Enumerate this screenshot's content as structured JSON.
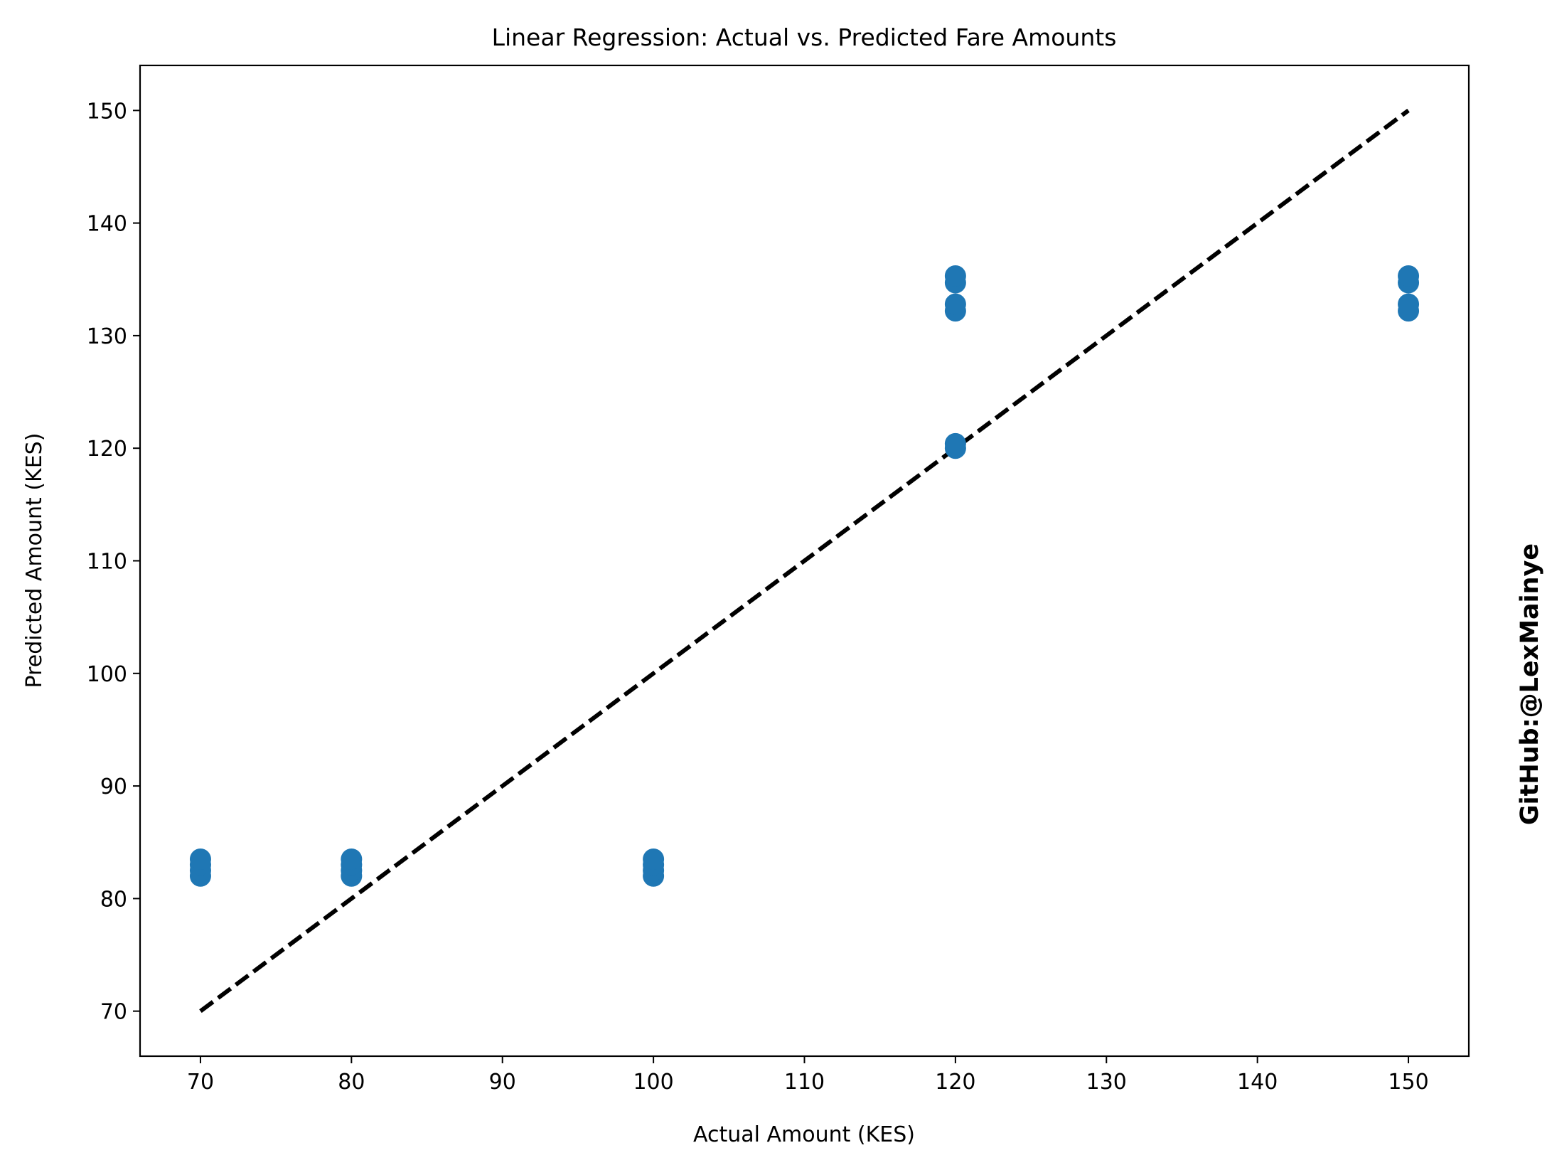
{
  "watermark": {
    "text": "GitHub:@LexMainye",
    "color": "#ff0000"
  },
  "chart_data": {
    "type": "scatter",
    "title": "Linear Regression: Actual vs. Predicted Fare Amounts",
    "xlabel": "Actual Amount (KES)",
    "ylabel": "Predicted Amount (KES)",
    "xlim": [
      66,
      154
    ],
    "ylim": [
      66,
      154
    ],
    "xticks": [
      70,
      80,
      90,
      100,
      110,
      120,
      130,
      140,
      150
    ],
    "yticks": [
      70,
      80,
      90,
      100,
      110,
      120,
      130,
      140,
      150
    ],
    "grid": false,
    "point_color": "#1f77b4",
    "points": [
      {
        "x": 70,
        "y": 82.0
      },
      {
        "x": 70,
        "y": 82.5
      },
      {
        "x": 70,
        "y": 83.0
      },
      {
        "x": 70,
        "y": 83.5
      },
      {
        "x": 80,
        "y": 82.0
      },
      {
        "x": 80,
        "y": 82.5
      },
      {
        "x": 80,
        "y": 83.0
      },
      {
        "x": 80,
        "y": 83.5
      },
      {
        "x": 100,
        "y": 82.0
      },
      {
        "x": 100,
        "y": 82.5
      },
      {
        "x": 100,
        "y": 83.0
      },
      {
        "x": 100,
        "y": 83.5
      },
      {
        "x": 120,
        "y": 120.0
      },
      {
        "x": 120,
        "y": 120.4
      },
      {
        "x": 120,
        "y": 132.2
      },
      {
        "x": 120,
        "y": 132.8
      },
      {
        "x": 120,
        "y": 134.7
      },
      {
        "x": 120,
        "y": 135.3
      },
      {
        "x": 150,
        "y": 132.2
      },
      {
        "x": 150,
        "y": 132.8
      },
      {
        "x": 150,
        "y": 134.7
      },
      {
        "x": 150,
        "y": 135.3
      }
    ],
    "reference_line": {
      "style": "dashed",
      "color": "#000000",
      "from": [
        70,
        70
      ],
      "to": [
        150,
        150
      ]
    }
  }
}
